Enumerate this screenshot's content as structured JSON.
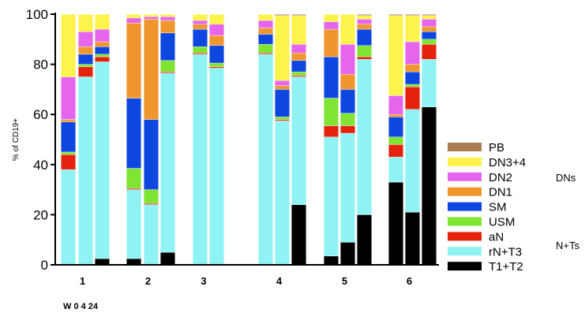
{
  "chart_data": {
    "type": "bar",
    "stacked": true,
    "title": "",
    "xlabel": "",
    "ylabel": "% of CD19+",
    "ylim": [
      0,
      100
    ],
    "yticks": [
      0,
      20,
      40,
      60,
      80,
      100
    ],
    "week_label": "W 0 4 24",
    "groups": [
      {
        "label": "1",
        "bars": [
          {
            "week": "0",
            "values": {
              "T1+T2": 0,
              "rN+T3": 38,
              "aN": 6,
              "USM": 1,
              "SM": 12,
              "DN1": 1,
              "DN2": 17,
              "DN3+4": 25,
              "PB": 0
            }
          },
          {
            "week": "4",
            "values": {
              "T1+T2": 0,
              "rN+T3": 75,
              "aN": 4,
              "USM": 1,
              "SM": 4,
              "DN1": 3,
              "DN2": 6,
              "DN3+4": 7,
              "PB": 0
            }
          },
          {
            "week": "24",
            "values": {
              "T1+T2": 2.5,
              "rN+T3": 78.5,
              "aN": 2,
              "USM": 1,
              "SM": 3,
              "DN1": 2,
              "DN2": 5,
              "DN3+4": 6,
              "PB": 0
            }
          }
        ]
      },
      {
        "label": "2",
        "bars": [
          {
            "week": "0",
            "values": {
              "T1+T2": 2.5,
              "rN+T3": 27.5,
              "aN": 0.5,
              "USM": 8,
              "SM": 28,
              "DN1": 30,
              "DN2": 2,
              "DN3+4": 1.5,
              "PB": 0
            }
          },
          {
            "week": "4",
            "values": {
              "T1+T2": 0,
              "rN+T3": 24,
              "aN": 0.5,
              "USM": 5.5,
              "SM": 28,
              "DN1": 40,
              "DN2": 1,
              "DN3+4": 1,
              "PB": 0
            }
          },
          {
            "week": "24",
            "values": {
              "T1+T2": 5,
              "rN+T3": 71.5,
              "aN": 0.5,
              "USM": 4.5,
              "SM": 11,
              "DN1": 5,
              "DN2": 1.5,
              "DN3+4": 1,
              "PB": 0
            }
          }
        ]
      },
      {
        "label": "3",
        "bars": [
          {
            "week": "0",
            "values": {
              "T1+T2": 0,
              "rN+T3": 84,
              "aN": 0.5,
              "USM": 2.5,
              "SM": 7,
              "DN1": 2,
              "DN2": 1.5,
              "DN3+4": 2.5,
              "PB": 0
            }
          },
          {
            "week": "4",
            "values": {
              "T1+T2": 0,
              "rN+T3": 78.5,
              "aN": 0.5,
              "USM": 1.5,
              "SM": 7,
              "DN1": 4,
              "DN2": 4.5,
              "DN3+4": 4,
              "PB": 0
            }
          }
        ]
      },
      {
        "label": "4",
        "bars": [
          {
            "week": "0",
            "values": {
              "T1+T2": 0,
              "rN+T3": 84,
              "aN": 0.5,
              "USM": 3.5,
              "SM": 4,
              "DN1": 2.5,
              "DN2": 3,
              "DN3+4": 2.5,
              "PB": 0
            }
          },
          {
            "week": "4",
            "values": {
              "T1+T2": 0,
              "rN+T3": 57.5,
              "aN": 0.5,
              "USM": 1,
              "SM": 11,
              "DN1": 1.5,
              "DN2": 2,
              "DN3+4": 26,
              "PB": 0.5
            }
          },
          {
            "week": "24",
            "values": {
              "T1+T2": 24,
              "rN+T3": 51,
              "aN": 0.5,
              "USM": 1.5,
              "SM": 4.5,
              "DN1": 3,
              "DN2": 3.5,
              "DN3+4": 11.5,
              "PB": 0.5
            }
          }
        ]
      },
      {
        "label": "5",
        "bars": [
          {
            "week": "0",
            "values": {
              "T1+T2": 3.5,
              "rN+T3": 47.5,
              "aN": 4.5,
              "USM": 11,
              "SM": 16.5,
              "DN1": 11,
              "DN2": 3,
              "DN3+4": 3,
              "PB": 0
            }
          },
          {
            "week": "4",
            "values": {
              "T1+T2": 9,
              "rN+T3": 43.5,
              "aN": 3,
              "USM": 5,
              "SM": 9.5,
              "DN1": 6,
              "DN2": 12,
              "DN3+4": 12,
              "PB": 0
            }
          },
          {
            "week": "24",
            "values": {
              "T1+T2": 20,
              "rN+T3": 62,
              "aN": 1,
              "USM": 4.5,
              "SM": 6.5,
              "DN1": 2,
              "DN2": 2,
              "DN3+4": 1.5,
              "PB": 0.5
            }
          }
        ]
      },
      {
        "label": "6",
        "bars": [
          {
            "week": "0",
            "values": {
              "T1+T2": 33,
              "rN+T3": 10,
              "aN": 5,
              "USM": 3,
              "SM": 8,
              "DN1": 1,
              "DN2": 7.5,
              "DN3+4": 32,
              "PB": 0.5
            }
          },
          {
            "week": "4",
            "values": {
              "T1+T2": 21,
              "rN+T3": 41,
              "aN": 9,
              "USM": 1,
              "SM": 5,
              "DN1": 3,
              "DN2": 9,
              "DN3+4": 10.5,
              "PB": 0.5
            }
          },
          {
            "week": "24",
            "values": {
              "T1+T2": 63,
              "rN+T3": 19,
              "aN": 6,
              "USM": 2,
              "SM": 3,
              "DN1": 2,
              "DN2": 3,
              "DN3+4": 1.5,
              "PB": 0.5
            }
          }
        ]
      }
    ],
    "legend": [
      {
        "name": "PB",
        "color": "#a97d4f"
      },
      {
        "name": "DN3+4",
        "color": "#fdf34a"
      },
      {
        "name": "DN2",
        "color": "#e566ec"
      },
      {
        "name": "DN1",
        "color": "#ef962e"
      },
      {
        "name": "SM",
        "color": "#0e47e0"
      },
      {
        "name": "USM",
        "color": "#7fe532"
      },
      {
        "name": "aN",
        "color": "#e4230f"
      },
      {
        "name": "rN+T3",
        "color": "#8ff3f3"
      },
      {
        "name": "T1+T2",
        "color": "#000000"
      }
    ],
    "legend_brackets": [
      "DNs",
      "N+Ts"
    ]
  }
}
